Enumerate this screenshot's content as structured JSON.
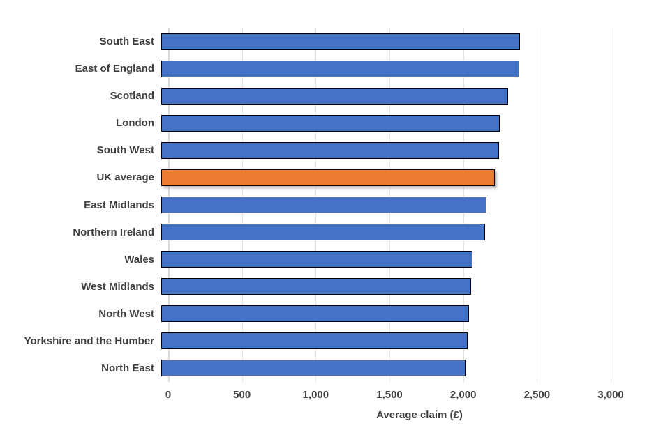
{
  "chart_data": {
    "type": "bar",
    "orientation": "horizontal",
    "title": "",
    "categories": [
      "South East",
      "East of England",
      "Scotland",
      "London",
      "South West",
      "UK average",
      "East Midlands",
      "Northern Ireland",
      "Wales",
      "West Midlands",
      "North West",
      "Yorkshire and the Humber",
      "North East"
    ],
    "values": [
      2430,
      2425,
      2350,
      2295,
      2290,
      2260,
      2205,
      2195,
      2110,
      2100,
      2085,
      2075,
      2065
    ],
    "highlight_category": "UK average",
    "xlabel": "Average claim (£)",
    "ylabel": "",
    "xticks": [
      0,
      500,
      1000,
      1500,
      2000,
      2500,
      3000
    ],
    "xtick_labels": [
      "0",
      "500",
      "1,000",
      "1,500",
      "2,000",
      "2,500",
      "3,000"
    ],
    "xlim": [
      0,
      3350
    ],
    "grid": true,
    "legend": "none",
    "colors": {
      "bar": "#4472C4",
      "highlight": "#ED7D31",
      "bar_border": "#000000",
      "gridline": "#D9D9D9",
      "text": "#3F3F3F",
      "background": "#FFFFFF"
    }
  }
}
